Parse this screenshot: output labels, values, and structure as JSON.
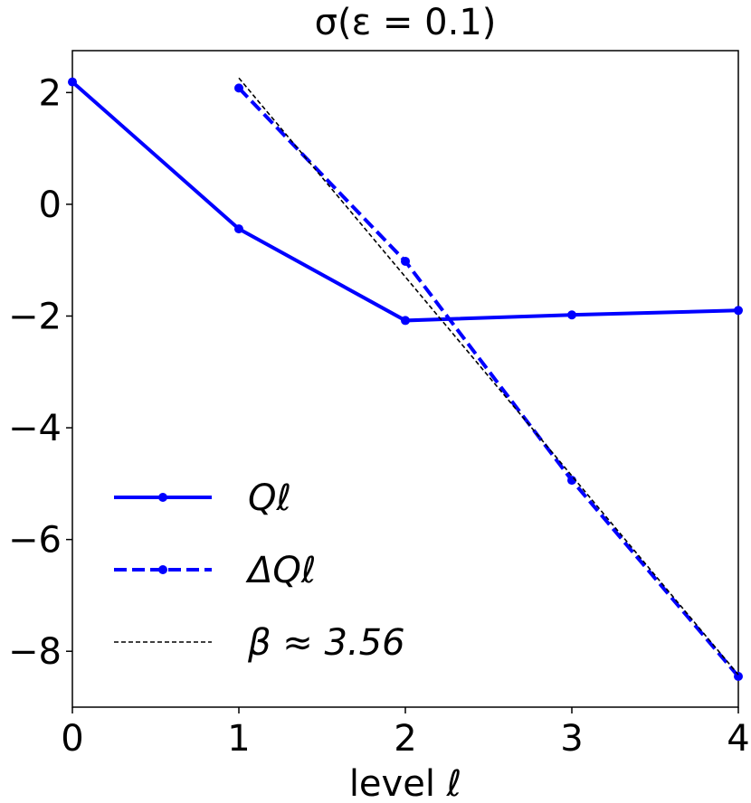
{
  "chart_data": {
    "type": "line",
    "title": "σ(ε = 0.1)",
    "x_label": "level ℓ",
    "series": [
      {
        "name": "Qℓ",
        "color": "#0000ff",
        "style": "solid",
        "marker": true,
        "x": [
          0,
          1,
          2,
          3,
          4
        ],
        "values": [
          2.19,
          -0.44,
          -2.08,
          -1.98,
          -1.9
        ]
      },
      {
        "name": "ΔQℓ",
        "color": "#0000ff",
        "style": "dashed",
        "marker": true,
        "x": [
          1,
          2,
          3,
          4
        ],
        "values": [
          2.08,
          -1.02,
          -4.94,
          -8.45
        ]
      },
      {
        "name": "β ≈ 3.56",
        "color": "#000000",
        "style": "dotted",
        "marker": false,
        "x": [
          1,
          4
        ],
        "values": [
          2.26,
          -8.42
        ]
      }
    ],
    "xlim": [
      0,
      4
    ],
    "xticks": [
      0,
      1,
      2,
      3,
      4
    ],
    "ylim": [
      -9,
      2.75
    ],
    "yticks": [
      {
        "value": -8,
        "label": "−8"
      },
      {
        "value": -6,
        "label": "−6"
      },
      {
        "value": -4,
        "label": "−4"
      },
      {
        "value": -2,
        "label": "−2"
      },
      0,
      2
    ],
    "legend": "lower left"
  }
}
